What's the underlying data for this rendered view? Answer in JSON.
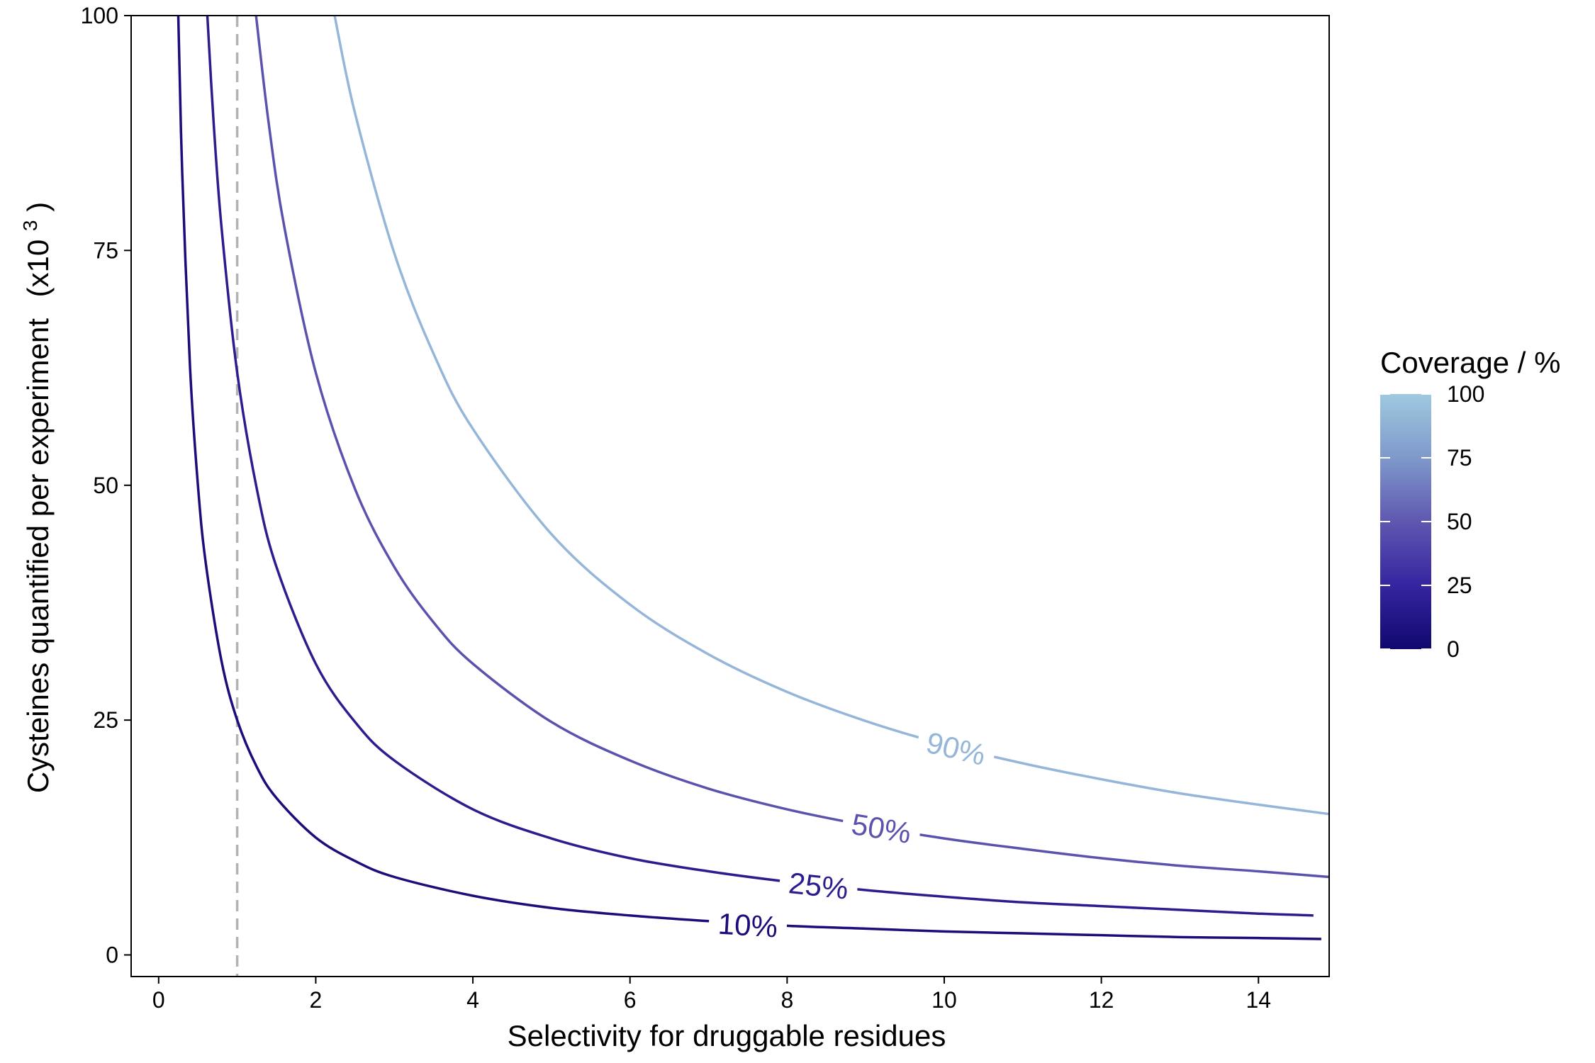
{
  "chart_data": {
    "type": "line",
    "title": "",
    "xlabel": "Selectivity for druggable residues",
    "ylabel_main": "Cysteines quantified per experiment",
    "ylabel_unit_prefix": "(x10",
    "ylabel_unit_exp": "3",
    "ylabel_unit_suffix": ")",
    "xlim": [
      -0.35,
      14.9
    ],
    "ylim": [
      -2.3,
      100
    ],
    "xticks": [
      0,
      2,
      4,
      6,
      8,
      10,
      12,
      14
    ],
    "xtick_labels": [
      "0",
      "2",
      "4",
      "6",
      "8",
      "10",
      "12",
      "14"
    ],
    "yticks": [
      0,
      25,
      50,
      75,
      100
    ],
    "ytick_labels": [
      "0",
      "25",
      "50",
      "75",
      "100"
    ],
    "grid": false,
    "reference_line": {
      "x": 1,
      "style": "dashed",
      "color": "#b3b3b3"
    },
    "series": [
      {
        "label": "10%",
        "coverage": 10,
        "color": "#1c0d7a",
        "label_x": 7.5,
        "label_y": 3.2,
        "x": [
          0.25,
          0.3,
          0.4,
          0.5,
          0.6,
          0.8,
          1,
          1.25,
          1.5,
          2,
          2.5,
          3,
          4,
          5,
          6,
          7,
          8,
          9,
          10,
          11,
          12,
          13,
          14,
          14.8
        ],
        "y": [
          100,
          83.3,
          62.5,
          50,
          41.7,
          31.3,
          25,
          20,
          16.7,
          12.5,
          10,
          8.3,
          6.3,
          5,
          4.2,
          3.6,
          3.1,
          2.8,
          2.5,
          2.3,
          2.1,
          1.9,
          1.8,
          1.7
        ]
      },
      {
        "label": "25%",
        "coverage": 25,
        "color": "#2c1d8e",
        "label_x": 8.4,
        "label_y": 7.4,
        "x": [
          0.62,
          0.7,
          0.8,
          1,
          1.25,
          1.5,
          2,
          2.5,
          3,
          4,
          5,
          6,
          7,
          8,
          9,
          10,
          11,
          12,
          13,
          14,
          14.7
        ],
        "y": [
          100,
          88.6,
          77.5,
          62,
          49.6,
          41.3,
          31,
          24.8,
          20.7,
          15.5,
          12.4,
          10.3,
          8.9,
          7.8,
          6.9,
          6.2,
          5.6,
          5.2,
          4.8,
          4.4,
          4.2
        ]
      },
      {
        "label": "50%",
        "coverage": 50,
        "color": "#5b52ad",
        "label_x": 9.2,
        "label_y": 13.5,
        "x": [
          1.24,
          1.4,
          1.6,
          2,
          2.5,
          3,
          3.5,
          4,
          5,
          6,
          7,
          8,
          9,
          10,
          11,
          12,
          13,
          14,
          14.9
        ],
        "y": [
          100,
          88.6,
          77.5,
          62,
          49.6,
          41.3,
          35.4,
          31,
          24.8,
          20.7,
          17.7,
          15.5,
          13.8,
          12.4,
          11.3,
          10.3,
          9.5,
          8.9,
          8.3
        ]
      },
      {
        "label": "90%",
        "coverage": 90,
        "color": "#95b6d9",
        "label_x": 10.15,
        "label_y": 22,
        "x": [
          2.24,
          2.5,
          3,
          3.5,
          4,
          5,
          6,
          7,
          8,
          9,
          10,
          11,
          12,
          13,
          14,
          14.9
        ],
        "y": [
          100,
          89.6,
          74.7,
          64,
          56,
          44.8,
          37.3,
          32,
          28,
          24.9,
          22.4,
          20.4,
          18.7,
          17.2,
          16,
          15
        ]
      }
    ],
    "legend": {
      "title": "Coverage / %",
      "position": "right",
      "type": "colorbar",
      "ticks": [
        0,
        25,
        50,
        75,
        100
      ],
      "tick_labels": [
        "0",
        "25",
        "50",
        "75",
        "100"
      ],
      "colors": [
        "#10086e",
        "#3525a0",
        "#5f57b0",
        "#7f99cb",
        "#9fc9e0"
      ]
    }
  }
}
